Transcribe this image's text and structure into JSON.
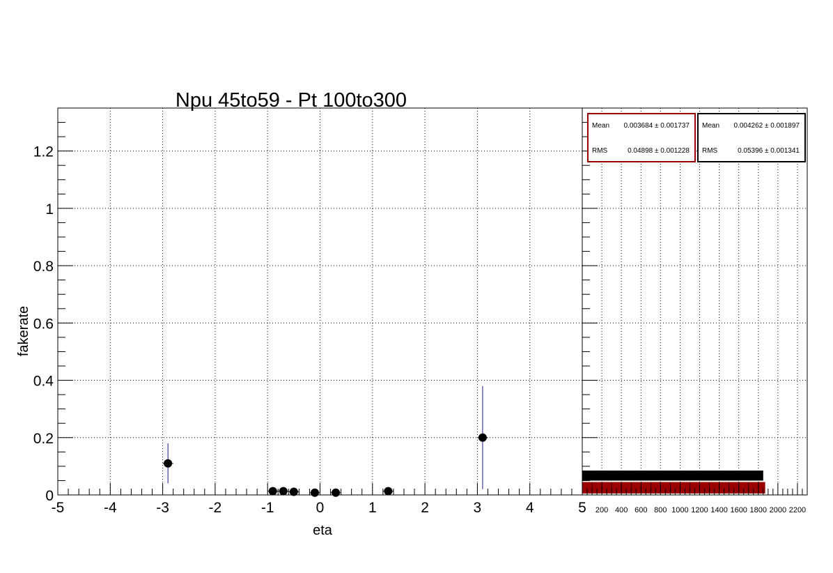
{
  "chart_data": [
    {
      "type": "scatter",
      "title": "Npu 45to59 - Pt 100to300",
      "xlabel": "eta",
      "ylabel": "fakerate",
      "xlim": [
        -5,
        5
      ],
      "ylim": [
        0,
        1.35
      ],
      "grid": true,
      "xticks": [
        "-5",
        "-4",
        "-3",
        "-2",
        "-1",
        "0",
        "1",
        "2",
        "3",
        "4",
        "5"
      ],
      "yticks": [
        "0",
        "0.2",
        "0.4",
        "0.6",
        "0.8",
        "1",
        "1.2"
      ],
      "series": [
        {
          "marker_color": "#000000",
          "error_color": "#1a1a8c",
          "points": [
            {
              "x": -2.9,
              "y": 0.11,
              "yerr_low": 0.07,
              "yerr_high": 0.07,
              "xerr": 0.1
            },
            {
              "x": -0.9,
              "y": 0.013,
              "yerr_low": 0.006,
              "yerr_high": 0.006,
              "xerr": 0.1
            },
            {
              "x": -0.7,
              "y": 0.013,
              "yerr_low": 0.006,
              "yerr_high": 0.006,
              "xerr": 0.1
            },
            {
              "x": -0.5,
              "y": 0.011,
              "yerr_low": 0.005,
              "yerr_high": 0.005,
              "xerr": 0.1
            },
            {
              "x": -0.1,
              "y": 0.008,
              "yerr_low": 0.004,
              "yerr_high": 0.004,
              "xerr": 0.1
            },
            {
              "x": 0.3,
              "y": 0.008,
              "yerr_low": 0.004,
              "yerr_high": 0.004,
              "xerr": 0.1
            },
            {
              "x": 1.3,
              "y": 0.013,
              "yerr_low": 0.006,
              "yerr_high": 0.006,
              "xerr": 0.1
            },
            {
              "x": 3.1,
              "y": 0.2,
              "yerr_low": 0.18,
              "yerr_high": 0.18,
              "xerr": 0.1
            }
          ]
        }
      ]
    },
    {
      "type": "bar",
      "orientation": "horizontal",
      "xlim": [
        0,
        2300
      ],
      "ylim": [
        0,
        1.35
      ],
      "grid": true,
      "xticks": [
        "200",
        "400",
        "600",
        "800",
        "1000",
        "1200",
        "1400",
        "1600",
        "1800",
        "2000",
        "2200"
      ],
      "series": [
        {
          "color": "#000000",
          "y_low": 0.05,
          "y_high": 0.085,
          "value": 1850
        },
        {
          "color": "#990000",
          "y_low": 0.005,
          "y_high": 0.045,
          "value": 1870
        }
      ]
    }
  ],
  "stats_boxes": [
    {
      "color": "#990000",
      "mean_label": "Mean",
      "mean_value": "0.003684 ± 0.001737",
      "rms_label": "RMS",
      "rms_value": "0.04898 ± 0.001228"
    },
    {
      "color": "#000000",
      "mean_label": "Mean",
      "mean_value": "0.004262 ± 0.001897",
      "rms_label": "RMS",
      "rms_value": "0.05396 ± 0.001341"
    }
  ]
}
